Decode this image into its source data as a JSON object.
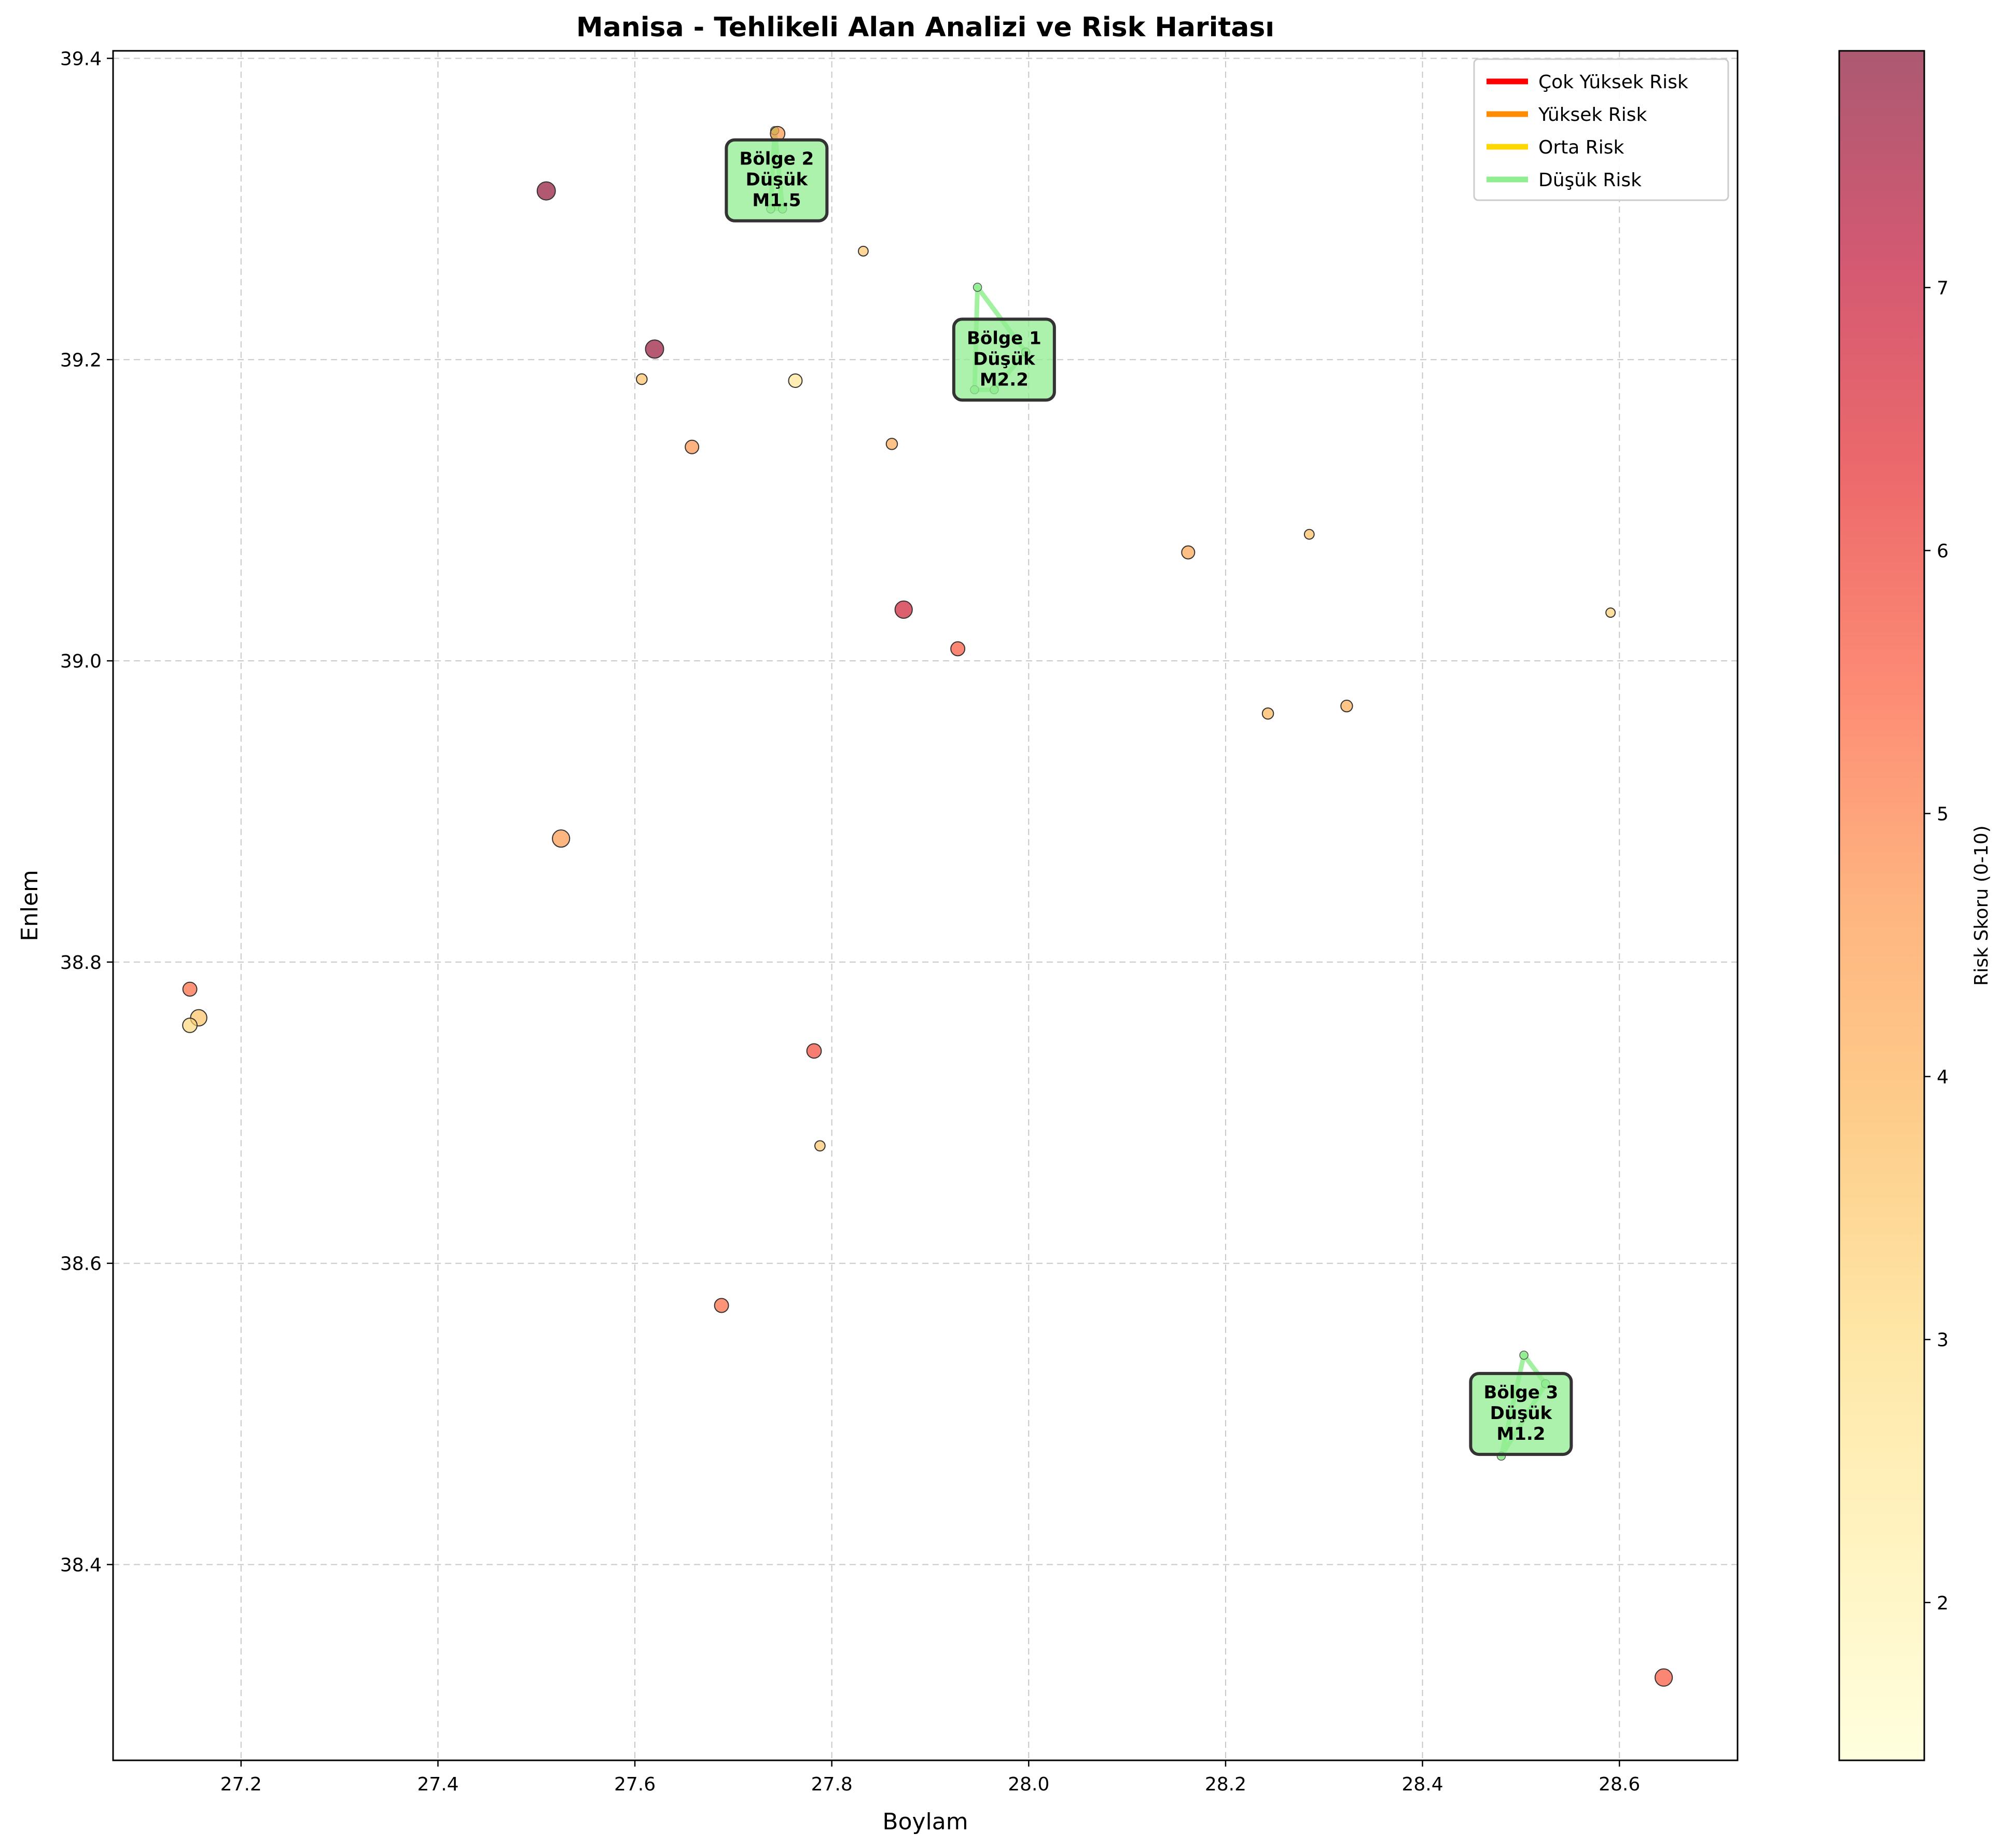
{
  "chart_data": {
    "type": "scatter",
    "title": "Manisa - Tehlikeli Alan Analizi ve Risk Haritası",
    "xlabel": "Boylam",
    "ylabel": "Enlem",
    "xlim": [
      27.07,
      28.72
    ],
    "ylim": [
      38.27,
      39.405
    ],
    "xticks": [
      "27.2",
      "27.4",
      "27.6",
      "27.8",
      "28.0",
      "28.2",
      "28.4",
      "28.6"
    ],
    "yticks": [
      "38.4",
      "38.6",
      "38.8",
      "39.0",
      "39.2",
      "39.4"
    ],
    "grid": true,
    "colorbar": {
      "label": "Risk Skoru (0-10)",
      "min": 1.4,
      "max": 7.9,
      "ticks": [
        "2",
        "3",
        "4",
        "5",
        "6",
        "7"
      ],
      "colormap": "YlOrRd"
    },
    "legend": {
      "position": "top-right",
      "items": [
        {
          "label": "Çok Yüksek Risk",
          "color": "#ff0000"
        },
        {
          "label": "Yüksek Risk",
          "color": "#ff8c00"
        },
        {
          "label": "Orta Risk",
          "color": "#ffd700"
        },
        {
          "label": "Düşük Risk",
          "color": "#90ee90"
        }
      ]
    },
    "points": [
      {
        "lon": 27.51,
        "lat": 39.312,
        "risk": 7.8,
        "mag": 3.0
      },
      {
        "lon": 27.62,
        "lat": 39.207,
        "risk": 7.7,
        "mag": 3.0
      },
      {
        "lon": 27.745,
        "lat": 39.35,
        "risk": 4.6,
        "mag": 2.2
      },
      {
        "lon": 27.832,
        "lat": 39.272,
        "risk": 3.5,
        "mag": 1.2
      },
      {
        "lon": 27.607,
        "lat": 39.187,
        "risk": 3.6,
        "mag": 1.4
      },
      {
        "lon": 27.763,
        "lat": 39.186,
        "risk": 2.6,
        "mag": 2.0
      },
      {
        "lon": 27.658,
        "lat": 39.142,
        "risk": 4.7,
        "mag": 2.0
      },
      {
        "lon": 27.861,
        "lat": 39.144,
        "risk": 4.2,
        "mag": 1.5
      },
      {
        "lon": 28.162,
        "lat": 39.072,
        "risk": 4.3,
        "mag": 1.9
      },
      {
        "lon": 28.285,
        "lat": 39.084,
        "risk": 3.7,
        "mag": 1.2
      },
      {
        "lon": 27.873,
        "lat": 39.034,
        "risk": 6.8,
        "mag": 2.8
      },
      {
        "lon": 27.928,
        "lat": 39.008,
        "risk": 5.6,
        "mag": 2.1
      },
      {
        "lon": 28.591,
        "lat": 39.032,
        "risk": 3.3,
        "mag": 1.1
      },
      {
        "lon": 28.243,
        "lat": 38.965,
        "risk": 3.9,
        "mag": 1.5
      },
      {
        "lon": 28.323,
        "lat": 38.97,
        "risk": 4.1,
        "mag": 1.6
      },
      {
        "lon": 27.525,
        "lat": 38.882,
        "risk": 4.6,
        "mag": 2.8
      },
      {
        "lon": 27.148,
        "lat": 38.782,
        "risk": 5.3,
        "mag": 2.1
      },
      {
        "lon": 27.157,
        "lat": 38.763,
        "risk": 3.6,
        "mag": 2.6
      },
      {
        "lon": 27.148,
        "lat": 38.758,
        "risk": 3.1,
        "mag": 2.2
      },
      {
        "lon": 27.782,
        "lat": 38.741,
        "risk": 5.8,
        "mag": 2.2
      },
      {
        "lon": 27.788,
        "lat": 38.678,
        "risk": 3.5,
        "mag": 1.3
      },
      {
        "lon": 27.688,
        "lat": 38.572,
        "risk": 5.3,
        "mag": 2.1
      },
      {
        "lon": 28.645,
        "lat": 38.325,
        "risk": 5.6,
        "mag": 2.8
      }
    ],
    "regions": [
      {
        "label": "Bölge 1",
        "level": "Düşük",
        "mag": "M2.2",
        "lon": 27.975,
        "lat": 39.2,
        "color": "#90ee90",
        "outline": [
          [
            27.948,
            39.248
          ],
          [
            27.997,
            39.205
          ],
          [
            27.965,
            39.18
          ],
          [
            27.945,
            39.18
          ]
        ]
      },
      {
        "label": "Bölge 2",
        "level": "Düşük",
        "mag": "M1.5",
        "lon": 27.744,
        "lat": 39.319,
        "color": "#90ee90",
        "outline": [
          [
            27.742,
            39.352
          ],
          [
            27.75,
            39.3
          ],
          [
            27.738,
            39.3
          ]
        ]
      },
      {
        "label": "Bölge 3",
        "level": "Düşük",
        "mag": "M1.2",
        "lon": 28.5,
        "lat": 38.5,
        "color": "#90ee90",
        "outline": [
          [
            28.503,
            38.539
          ],
          [
            28.525,
            38.52
          ],
          [
            28.48,
            38.472
          ]
        ]
      }
    ]
  }
}
